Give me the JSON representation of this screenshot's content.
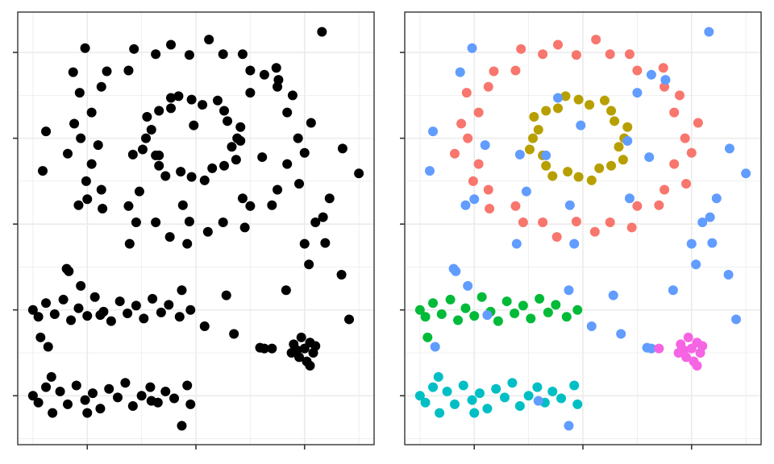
{
  "chart_data": [
    {
      "type": "scatter",
      "xlim": [
        -0.64,
        2.64
      ],
      "ylim": [
        -0.57,
        4.47
      ],
      "xticks": [
        0,
        1,
        2
      ],
      "yticks": [
        0,
        1,
        2,
        3,
        4
      ],
      "grid": true,
      "series": [
        {
          "color": "#000000",
          "x": [
            1.94,
            2.06,
            1.84,
            1.89,
            1.75,
            1.74,
            1.5,
            1.43,
            1.25,
            1.12,
            0.94,
            0.77,
            0.63,
            0.43,
            0.38,
            0.18,
            0.13,
            -0.07,
            0.04,
            -0.12,
            -0.06,
            -0.18,
            0.04,
            -0.01,
            0.13,
            0.14,
            0.38,
            0.45,
            0.63,
            0.76,
            0.94,
            1.11,
            1.25,
            1.45,
            1.5,
            1.7,
            1.75,
            1.95,
            1.84,
            2.0
          ],
          "y": [
            3.0,
            3.18,
            3.3,
            3.5,
            3.6,
            3.82,
            3.79,
            3.98,
            3.98,
            4.15,
            3.97,
            4.09,
            3.98,
            4.04,
            3.79,
            3.78,
            3.6,
            3.53,
            3.3,
            3.17,
            3.0,
            2.82,
            2.7,
            2.5,
            2.4,
            2.18,
            2.21,
            2.02,
            2.02,
            1.85,
            2.03,
            1.91,
            2.02,
            1.96,
            2.21,
            2.22,
            2.4,
            2.47,
            2.7,
            2.83
          ]
        },
        {
          "color": "#000000",
          "x": [
            1.38,
            1.41,
            1.29,
            1.26,
            1.2,
            1.06,
            0.96,
            0.84,
            0.77,
            0.66,
            0.55,
            0.59,
            0.54,
            0.51,
            0.63,
            0.66,
            0.72,
            0.86,
            0.96,
            1.08,
            1.15,
            1.26,
            1.37,
            1.33
          ],
          "y": [
            3.0,
            3.13,
            3.2,
            3.32,
            3.44,
            3.39,
            3.45,
            3.49,
            3.35,
            3.32,
            3.25,
            3.1,
            3.0,
            2.87,
            2.8,
            2.68,
            2.56,
            2.61,
            2.55,
            2.51,
            2.65,
            2.68,
            2.75,
            2.9
          ]
        },
        {
          "color": "#000000",
          "x": [
            -0.5,
            -0.45,
            -0.38,
            -0.3,
            -0.22,
            -0.15,
            -0.08,
            0,
            0.07,
            0.15,
            0.22,
            0.3,
            0.37,
            0.45,
            0.52,
            0.6,
            0.68,
            0.75,
            0.85,
            0.95,
            -0.43
          ],
          "y": [
            1.0,
            0.92,
            1.08,
            0.95,
            1.12,
            0.88,
            1.02,
            0.93,
            1.15,
            0.98,
            0.87,
            1.1,
            0.96,
            1.05,
            0.9,
            1.13,
            0.97,
            1.06,
            0.92,
            1.0,
            0.68
          ]
        },
        {
          "color": "#000000",
          "x": [
            -0.5,
            -0.45,
            -0.38,
            -0.32,
            -0.25,
            -0.18,
            -0.1,
            -0.02,
            0.05,
            0.12,
            0.2,
            0.28,
            0.35,
            0.42,
            0.5,
            0.58,
            0.65,
            0.72,
            0.8,
            0.92,
            0.95,
            -0.33,
            0
          ],
          "y": [
            0,
            -0.08,
            0.1,
            -0.2,
            0.05,
            -0.1,
            0.12,
            -0.05,
            0.03,
            -0.15,
            0.08,
            -0.02,
            0.15,
            -0.12,
            0,
            0.1,
            -0.08,
            0.05,
            -0.03,
            0.12,
            -0.1,
            0.22,
            -0.2
          ]
        },
        {
          "color": "#000000",
          "x": [
            -0.02,
            -0.13,
            -0.38,
            -0.41,
            0.1,
            -0.08,
            0,
            0.42,
            0.48,
            0.39,
            0.92,
            0.88,
            0.66,
            0.77,
            0.98,
            1.41,
            1.43,
            1.61,
            1.5,
            1.63,
            1.76,
            2.16,
            2.35,
            2.5,
            2.23,
            2.17,
            2.1,
            2.19,
            2.0,
            2.04,
            2.34,
            1.83,
            2.41,
            1.28,
            0.87,
            1.08,
            1.35,
            1.59,
            1.63,
            -0.06,
            -0.19,
            -0.17,
            -0.36,
            0.12,
            0.59,
            0.87
          ],
          "y": [
            4.05,
            3.77,
            3.08,
            2.62,
            2.92,
            2.22,
            2.29,
            2.81,
            2.38,
            1.77,
            1.77,
            2.22,
            2.8,
            3.47,
            3.15,
            2.97,
            2.3,
            2.78,
            3.53,
            3.74,
            3.68,
            4.24,
            2.88,
            2.59,
            2.3,
            2.08,
            2.02,
            1.78,
            1.77,
            1.53,
            1.41,
            1.23,
            0.89,
            1.17,
            1.23,
            0.81,
            0.72,
            0.56,
            0.55,
            1.28,
            1.48,
            1.45,
            0.57,
            0.94,
            -0.06,
            -0.35
          ]
        },
        {
          "color": "#000000",
          "x": [
            1.9,
            1.95,
            2.0,
            2.05,
            2.08,
            1.97,
            2.02,
            1.88,
            2.1,
            1.93,
            2.05,
            1.7
          ],
          "y": [
            0.6,
            0.45,
            0.55,
            0.62,
            0.5,
            0.68,
            0.4,
            0.5,
            0.58,
            0.53,
            0.35,
            0.55
          ]
        }
      ]
    },
    {
      "type": "scatter",
      "xlim": [
        -0.64,
        2.64
      ],
      "ylim": [
        -0.57,
        4.47
      ],
      "xticks": [
        0,
        1,
        2
      ],
      "yticks": [
        0,
        1,
        2,
        3,
        4
      ],
      "grid": true,
      "series": [
        {
          "color": "#F8766D",
          "x": [
            1.94,
            2.06,
            1.84,
            1.89,
            1.75,
            1.74,
            1.5,
            1.43,
            1.25,
            1.12,
            0.94,
            0.77,
            0.63,
            0.43,
            0.38,
            0.18,
            0.13,
            -0.07,
            0.04,
            -0.12,
            -0.06,
            -0.18,
            0.04,
            -0.01,
            0.13,
            0.14,
            0.38,
            0.45,
            0.63,
            0.76,
            0.94,
            1.11,
            1.25,
            1.45,
            1.5,
            1.7,
            1.75,
            1.95,
            1.84,
            2.0
          ],
          "y": [
            3.0,
            3.18,
            3.3,
            3.5,
            3.6,
            3.82,
            3.79,
            3.98,
            3.98,
            4.15,
            3.97,
            4.09,
            3.98,
            4.04,
            3.79,
            3.78,
            3.6,
            3.53,
            3.3,
            3.17,
            3.0,
            2.82,
            2.7,
            2.5,
            2.4,
            2.18,
            2.21,
            2.02,
            2.02,
            1.85,
            2.03,
            1.91,
            2.02,
            1.96,
            2.21,
            2.22,
            2.4,
            2.47,
            2.7,
            2.83
          ]
        },
        {
          "color": "#B79F00",
          "x": [
            1.38,
            1.41,
            1.29,
            1.26,
            1.2,
            1.06,
            0.96,
            0.84,
            0.77,
            0.66,
            0.55,
            0.59,
            0.54,
            0.51,
            0.63,
            0.66,
            0.72,
            0.86,
            0.96,
            1.08,
            1.15,
            1.26,
            1.37,
            1.33
          ],
          "y": [
            3.0,
            3.13,
            3.2,
            3.32,
            3.44,
            3.39,
            3.45,
            3.49,
            3.35,
            3.32,
            3.25,
            3.1,
            3.0,
            2.87,
            2.8,
            2.68,
            2.56,
            2.61,
            2.55,
            2.51,
            2.65,
            2.68,
            2.75,
            2.9
          ]
        },
        {
          "color": "#00BA38",
          "x": [
            -0.5,
            -0.45,
            -0.38,
            -0.3,
            -0.22,
            -0.15,
            -0.08,
            0,
            0.07,
            0.15,
            0.22,
            0.3,
            0.37,
            0.45,
            0.52,
            0.6,
            0.68,
            0.75,
            0.85,
            0.95,
            -0.43
          ],
          "y": [
            1.0,
            0.92,
            1.08,
            0.95,
            1.12,
            0.88,
            1.02,
            0.93,
            1.15,
            0.98,
            0.87,
            1.1,
            0.96,
            1.05,
            0.9,
            1.13,
            0.97,
            1.06,
            0.92,
            1.0,
            0.68
          ]
        },
        {
          "color": "#00BFC4",
          "x": [
            -0.5,
            -0.45,
            -0.38,
            -0.32,
            -0.25,
            -0.18,
            -0.1,
            -0.02,
            0.05,
            0.12,
            0.2,
            0.28,
            0.35,
            0.42,
            0.5,
            0.58,
            0.65,
            0.72,
            0.8,
            0.92,
            0.95,
            -0.33,
            0
          ],
          "y": [
            0,
            -0.08,
            0.1,
            -0.2,
            0.05,
            -0.1,
            0.12,
            -0.05,
            0.03,
            -0.15,
            0.08,
            -0.02,
            0.15,
            -0.12,
            0,
            0.1,
            -0.08,
            0.05,
            -0.03,
            0.12,
            -0.1,
            0.22,
            -0.2
          ]
        },
        {
          "color": "#619CFF",
          "x": [
            -0.02,
            -0.13,
            -0.38,
            -0.41,
            0.1,
            -0.08,
            0,
            0.42,
            0.48,
            0.39,
            0.92,
            0.88,
            0.66,
            0.77,
            0.98,
            1.41,
            1.43,
            1.61,
            1.5,
            1.63,
            1.76,
            2.16,
            2.35,
            2.5,
            2.23,
            2.17,
            2.1,
            2.19,
            2.0,
            2.04,
            2.34,
            1.83,
            2.41,
            1.28,
            0.87,
            1.08,
            1.35,
            1.59,
            1.63,
            -0.06,
            -0.19,
            -0.17,
            -0.36,
            0.12,
            0.59,
            0.87
          ],
          "y": [
            4.05,
            3.77,
            3.08,
            2.62,
            2.92,
            2.22,
            2.29,
            2.81,
            2.38,
            1.77,
            1.77,
            2.22,
            2.8,
            3.47,
            3.15,
            2.97,
            2.3,
            2.78,
            3.53,
            3.74,
            3.68,
            4.24,
            2.88,
            2.59,
            2.3,
            2.08,
            2.02,
            1.78,
            1.77,
            1.53,
            1.41,
            1.23,
            0.89,
            1.17,
            1.23,
            0.81,
            0.72,
            0.56,
            0.55,
            1.28,
            1.48,
            1.45,
            0.57,
            0.94,
            -0.06,
            -0.35
          ]
        },
        {
          "color": "#F564E3",
          "x": [
            1.9,
            1.95,
            2.0,
            2.05,
            2.08,
            1.97,
            2.02,
            1.88,
            2.1,
            1.93,
            2.05,
            1.7
          ],
          "y": [
            0.6,
            0.45,
            0.55,
            0.62,
            0.5,
            0.68,
            0.4,
            0.5,
            0.58,
            0.53,
            0.35,
            0.55
          ]
        }
      ]
    }
  ]
}
